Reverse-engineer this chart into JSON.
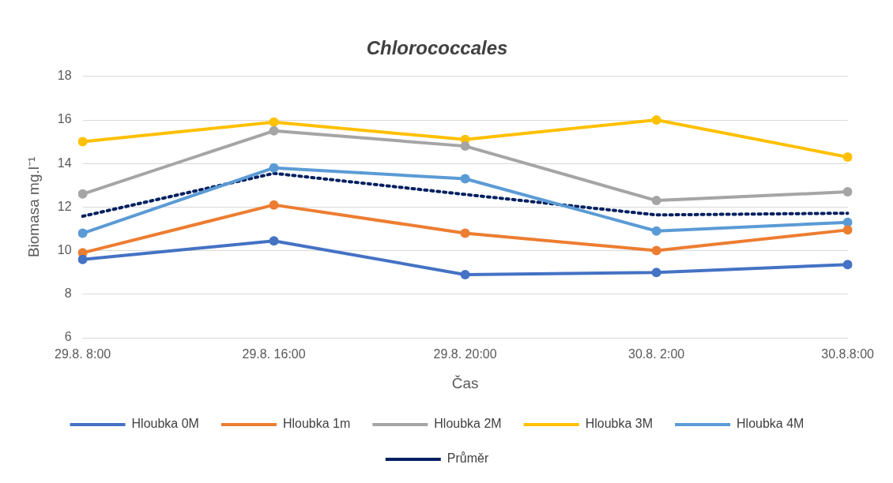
{
  "chart_data": {
    "type": "line",
    "title": "Chlorococcales",
    "xlabel": "Čas",
    "ylabel": "Biomasa mg.l⁻¹",
    "categories": [
      "29.8. 8:00",
      "29.8. 16:00",
      "29.8. 20:00",
      "30.8. 2:00",
      "30.8.8:00"
    ],
    "ylim": [
      6,
      18
    ],
    "yticks": [
      6,
      8,
      10,
      12,
      14,
      16,
      18
    ],
    "grid": "y",
    "legend": "bottom",
    "marker": "circle",
    "line_style": "solid",
    "series": [
      {
        "name": "Hloubka 0M",
        "color": "#4472c4",
        "values": [
          9.6,
          10.45,
          8.9,
          9.0,
          9.36
        ]
      },
      {
        "name": "Hloubka 1m",
        "color": "#ed7d31",
        "values": [
          9.9,
          12.1,
          10.8,
          10.0,
          10.95
        ]
      },
      {
        "name": "Hloubka 2M",
        "color": "#a5a5a5",
        "values": [
          12.6,
          15.5,
          14.8,
          12.3,
          12.7
        ]
      },
      {
        "name": "Hloubka 3M",
        "color": "#ffc000",
        "values": [
          15.0,
          15.9,
          15.1,
          16.0,
          14.3
        ]
      },
      {
        "name": "Hloubka 4M",
        "color": "#5b9bd5",
        "values": [
          10.8,
          13.8,
          13.3,
          10.9,
          11.3
        ]
      },
      {
        "name": "Průměr",
        "color": "#002060",
        "values": [
          11.58,
          13.55,
          12.58,
          11.64,
          11.72
        ],
        "marker": "none",
        "line_style": "dotted"
      }
    ]
  }
}
